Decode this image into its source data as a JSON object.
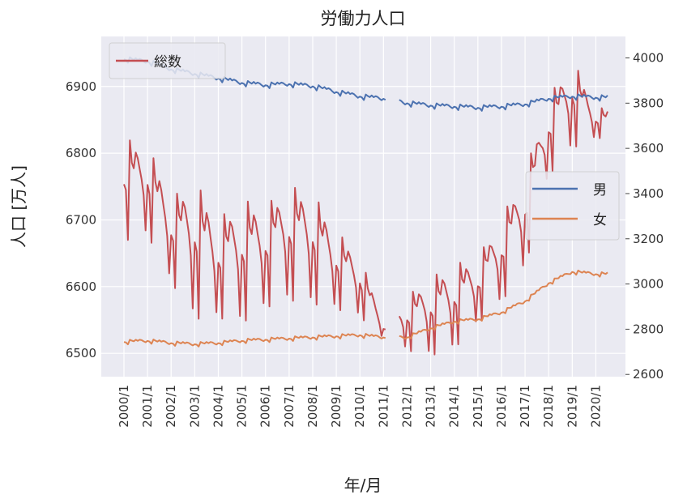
{
  "chart_data": {
    "type": "line",
    "title": "労働力人口",
    "xlabel": "年/月",
    "ylabel": "人口 [万人]",
    "x_start": "2000/1",
    "x_end": "2020/7",
    "x_ticks": [
      "2000/1",
      "2001/1",
      "2002/1",
      "2003/1",
      "2004/1",
      "2005/1",
      "2006/1",
      "2007/1",
      "2008/1",
      "2009/1",
      "2010/1",
      "2011/1",
      "2012/1",
      "2013/1",
      "2014/1",
      "2015/1",
      "2016/1",
      "2017/1",
      "2018/1",
      "2019/1",
      "2020/1"
    ],
    "gap": [
      "2011/3",
      "2011/8"
    ],
    "left_axis": {
      "ylim": [
        6465,
        6975
      ],
      "ticks": [
        6500,
        6600,
        6700,
        6800,
        6900
      ]
    },
    "right_axis": {
      "ylim": [
        2590,
        4095
      ],
      "ticks": [
        2600,
        2800,
        3000,
        3200,
        3400,
        3600,
        3800,
        4000
      ]
    },
    "grid": true,
    "legends": [
      {
        "placement": "upper-left",
        "entries": [
          "総数"
        ]
      },
      {
        "placement": "center-right",
        "entries": [
          "男",
          "女"
        ]
      }
    ],
    "series": [
      {
        "name": "総数",
        "axis": "left",
        "color": "#c44e52",
        "annual_points": [
          {
            "year": 2000,
            "min": 6660,
            "max": 6830
          },
          {
            "year": 2001,
            "min": 6670,
            "max": 6820
          },
          {
            "year": 2002,
            "min": 6600,
            "max": 6740
          },
          {
            "year": 2003,
            "min": 6540,
            "max": 6770
          },
          {
            "year": 2004,
            "min": 6545,
            "max": 6710
          },
          {
            "year": 2005,
            "min": 6535,
            "max": 6740
          },
          {
            "year": 2006,
            "min": 6560,
            "max": 6730
          },
          {
            "year": 2007,
            "min": 6570,
            "max": 6760
          },
          {
            "year": 2008,
            "min": 6565,
            "max": 6750
          },
          {
            "year": 2009,
            "min": 6560,
            "max": 6690
          },
          {
            "year": 2010,
            "min": 6550,
            "max": 6650
          },
          {
            "year": 2011,
            "min": 6520,
            "max": 6550
          },
          {
            "year": 2012,
            "min": 6500,
            "max": 6590
          },
          {
            "year": 2013,
            "min": 6490,
            "max": 6620
          },
          {
            "year": 2014,
            "min": 6500,
            "max": 6640
          },
          {
            "year": 2015,
            "min": 6540,
            "max": 6650
          },
          {
            "year": 2016,
            "min": 6570,
            "max": 6710
          },
          {
            "year": 2017,
            "min": 6620,
            "max": 6780
          },
          {
            "year": 2018,
            "min": 6760,
            "max": 6890
          },
          {
            "year": 2019,
            "min": 6800,
            "max": 6950
          },
          {
            "year": 2020,
            "min": 6820,
            "max": 6870
          }
        ]
      },
      {
        "name": "男",
        "axis": "right",
        "color": "#4c72b0",
        "annual_points": [
          {
            "year": 2000,
            "value": 3990
          },
          {
            "year": 2001,
            "value": 3980
          },
          {
            "year": 2002,
            "value": 3945
          },
          {
            "year": 2003,
            "value": 3925
          },
          {
            "year": 2004,
            "value": 3905
          },
          {
            "year": 2005,
            "value": 3885
          },
          {
            "year": 2006,
            "value": 3875
          },
          {
            "year": 2007,
            "value": 3880
          },
          {
            "year": 2008,
            "value": 3870
          },
          {
            "year": 2009,
            "value": 3845
          },
          {
            "year": 2010,
            "value": 3825
          },
          {
            "year": 2011,
            "value": 3815
          },
          {
            "year": 2012,
            "value": 3795
          },
          {
            "year": 2013,
            "value": 3785
          },
          {
            "year": 2014,
            "value": 3780
          },
          {
            "year": 2015,
            "value": 3775
          },
          {
            "year": 2016,
            "value": 3780
          },
          {
            "year": 2017,
            "value": 3790
          },
          {
            "year": 2018,
            "value": 3815
          },
          {
            "year": 2019,
            "value": 3825
          },
          {
            "year": 2020,
            "value": 3820
          }
        ]
      },
      {
        "name": "女",
        "axis": "right",
        "color": "#dd8452",
        "annual_points": [
          {
            "year": 2000,
            "value": 2740
          },
          {
            "year": 2001,
            "value": 2745
          },
          {
            "year": 2002,
            "value": 2735
          },
          {
            "year": 2003,
            "value": 2730
          },
          {
            "year": 2004,
            "value": 2735
          },
          {
            "year": 2005,
            "value": 2745
          },
          {
            "year": 2006,
            "value": 2750
          },
          {
            "year": 2007,
            "value": 2755
          },
          {
            "year": 2008,
            "value": 2760
          },
          {
            "year": 2009,
            "value": 2765
          },
          {
            "year": 2010,
            "value": 2770
          },
          {
            "year": 2011,
            "value": 2760
          },
          {
            "year": 2012,
            "value": 2760
          },
          {
            "year": 2013,
            "value": 2800
          },
          {
            "year": 2014,
            "value": 2830
          },
          {
            "year": 2015,
            "value": 2840
          },
          {
            "year": 2016,
            "value": 2870
          },
          {
            "year": 2017,
            "value": 2920
          },
          {
            "year": 2018,
            "value": 3000
          },
          {
            "year": 2019,
            "value": 3050
          },
          {
            "year": 2020,
            "value": 3040
          }
        ]
      }
    ]
  }
}
